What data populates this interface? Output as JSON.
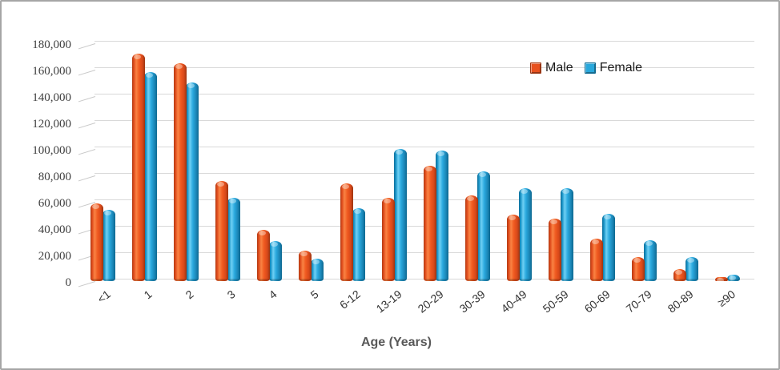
{
  "window": {
    "background": "#ffffff",
    "border_color": "#a6a6a6"
  },
  "legend": {
    "items": [
      {
        "label": "Male",
        "color": "#e8511f"
      },
      {
        "label": "Female",
        "color": "#29a8dc"
      }
    ]
  },
  "chart_data": {
    "type": "bar",
    "bar_style": "3d-cylinder",
    "title": "",
    "xlabel": "Age (Years)",
    "ylabel": "",
    "categories": [
      "<1",
      "1",
      "2",
      "3",
      "4",
      "5",
      "6-12",
      "13-19",
      "20-29",
      "30-39",
      "40-49",
      "50-59",
      "60-69",
      "70-79",
      "80-89",
      "≥90"
    ],
    "series": [
      {
        "name": "Male",
        "color": "#e8511f",
        "values": [
          59000,
          172000,
          165000,
          76000,
          39000,
          23000,
          74000,
          63000,
          87000,
          65000,
          50000,
          47000,
          32000,
          18000,
          9000,
          3000
        ]
      },
      {
        "name": "Female",
        "color": "#29a8dc",
        "values": [
          54000,
          158000,
          150000,
          63000,
          30000,
          17000,
          55000,
          100000,
          99000,
          83000,
          70000,
          70000,
          51000,
          31000,
          18000,
          5000
        ]
      }
    ],
    "ylim": [
      0,
      180000
    ],
    "ytick_step": 20000,
    "y_tick_labels": [
      "0",
      "20,000",
      "40,000",
      "60,000",
      "80,000",
      "100,000",
      "120,000",
      "140,000",
      "160,000",
      "180,000"
    ],
    "grid": true,
    "gridline_color": "#d9d9d9",
    "legend_position": "top-right"
  }
}
